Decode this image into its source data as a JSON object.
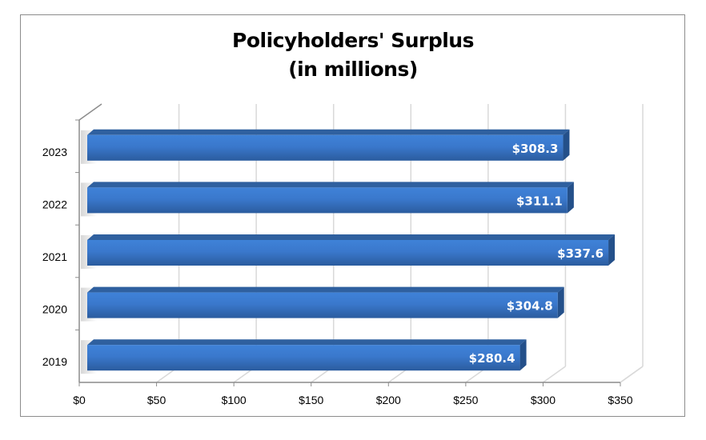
{
  "chart_data": {
    "type": "bar",
    "orientation": "horizontal",
    "title": "Policyholders' Surplus",
    "subtitle": "(in millions)",
    "categories": [
      "2019",
      "2020",
      "2021",
      "2022",
      "2023"
    ],
    "values": [
      280.4,
      304.8,
      337.6,
      311.1,
      308.3
    ],
    "data_labels": [
      "$280.4",
      "$304.8",
      "$337.6",
      "$311.1",
      "$308.3"
    ],
    "x_ticks": [
      "$0",
      "$50",
      "$100",
      "$150",
      "$200",
      "$250",
      "$300",
      "$350"
    ],
    "xlim": [
      0,
      350
    ],
    "xlabel": "",
    "ylabel": "",
    "grid": true,
    "legend": "none",
    "colors": {
      "bar": "#3a7bd5",
      "bar_dark": "#2a5a9a",
      "bar_top": "#2f609f",
      "grid": "#d9d9d9",
      "axis": "#8c8c8c"
    }
  }
}
